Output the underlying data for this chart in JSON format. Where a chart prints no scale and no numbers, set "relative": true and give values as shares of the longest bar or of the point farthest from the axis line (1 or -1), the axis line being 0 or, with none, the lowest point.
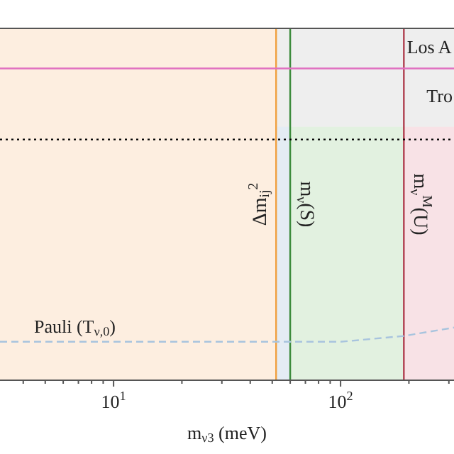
{
  "chart_data": {
    "type": "line",
    "relative": true,
    "xlabel": "m$_{ν3}$ (meV)",
    "log": "x",
    "xlim": [
      3.16,
      316
    ],
    "xticks": [
      {
        "value": 4,
        "label": null
      },
      {
        "value": 5,
        "label": null
      },
      {
        "value": 6,
        "label": null
      },
      {
        "value": 7,
        "label": null
      },
      {
        "value": 8,
        "label": null
      },
      {
        "value": 9,
        "label": null
      },
      {
        "value": 10,
        "label": "10$^{1}$"
      },
      {
        "value": 20,
        "label": null
      },
      {
        "value": 30,
        "label": null
      },
      {
        "value": 40,
        "label": null
      },
      {
        "value": 50,
        "label": null
      },
      {
        "value": 60,
        "label": null
      },
      {
        "value": 70,
        "label": null
      },
      {
        "value": 80,
        "label": null
      },
      {
        "value": 90,
        "label": null
      },
      {
        "value": 100,
        "label": "10$^{2}$"
      },
      {
        "value": 200,
        "label": null
      },
      {
        "value": 300,
        "label": null
      }
    ],
    "line_style": "dashed",
    "marker": "none",
    "series": [
      {
        "name": "Pauli (T$_{ν,0}$)",
        "color": "#a8c4de",
        "x": [
          3.16,
          100,
          190,
          316
        ],
        "values": [
          0.73,
          0.73,
          0.84,
          1
        ]
      }
    ],
    "bands": [
      {
        "axis": "x",
        "from": 52,
        "to": 60,
        "color": "#e4ecf4"
      },
      {
        "axis": "x",
        "from": 60,
        "to": 190,
        "label": "m$_{ν}$(S)",
        "color": "#e2f1e0"
      },
      {
        "axis": "x",
        "from": 190,
        "to": 316,
        "label": "m$_{ν}$$^{M}$(U)",
        "color": "#f8e2e6"
      },
      {
        "axis": "y",
        "from": 5.92,
        "to": 6.68,
        "label": "Los A",
        "color": "#eeeeee"
      },
      {
        "axis": "y",
        "from": 4.81,
        "to": 5.92,
        "label": "Tro",
        "color": "#eeeeee"
      },
      {
        "axis": "x",
        "from": 3.16,
        "to": 52,
        "color": "#fdeee0"
      }
    ],
    "ref_lines": [
      {
        "axis": "x",
        "value": 52,
        "label": "Δm$_{ij}$$^{2}$",
        "color": "#f0a040"
      },
      {
        "axis": "x",
        "value": 60,
        "color": "#3a8a3a"
      },
      {
        "axis": "x",
        "value": 190,
        "color": "#b04050"
      },
      {
        "axis": "y",
        "value": 5.92,
        "color": "#e070c0"
      },
      {
        "axis": "y",
        "value": 4.57,
        "color": "#000000",
        "line_style": "dotted"
      }
    ]
  }
}
